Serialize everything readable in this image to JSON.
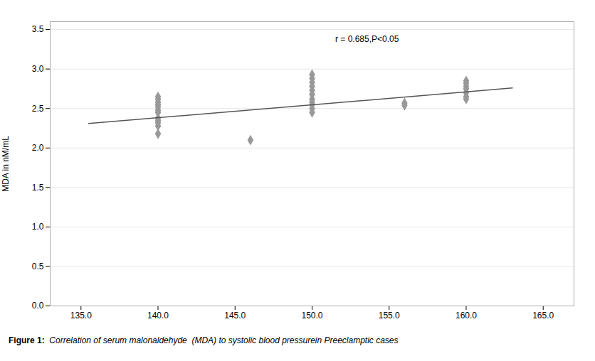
{
  "chart_data": {
    "type": "scatter",
    "ylabel": "MDA in nM/mL",
    "caption": [
      "Figure 1:",
      "  Correlation of serum malonaldehyde  (MDA) to systolic blood pressurein Preeclamptic cases"
    ],
    "xlim": [
      133.0,
      167.0
    ],
    "ylim": [
      0.0,
      3.6
    ],
    "xticks": [
      {
        "value": 135,
        "label": "135.0"
      },
      {
        "value": 140,
        "label": "140.0"
      },
      {
        "value": 145,
        "label": "145.0"
      },
      {
        "value": 150,
        "label": "150.0"
      },
      {
        "value": 155,
        "label": "155.0"
      },
      {
        "value": 160,
        "label": "160.0"
      },
      {
        "value": 165,
        "label": "165.0"
      }
    ],
    "yticks": [
      {
        "value": 0,
        "label": "0.0"
      },
      {
        "value": 0.5,
        "label": "0.5"
      },
      {
        "value": 1,
        "label": "1.0"
      },
      {
        "value": 1.5,
        "label": "1.5"
      },
      {
        "value": 2,
        "label": "2.0"
      },
      {
        "value": 2.5,
        "label": "2.5"
      },
      {
        "value": 3,
        "label": "3.0"
      },
      {
        "value": 3.5,
        "label": "3.5"
      }
    ],
    "grid": "y",
    "series": [
      {
        "type": "scatter",
        "color": "#999999",
        "marker": "diamond",
        "x": [
          140,
          140,
          140,
          140,
          140,
          140,
          140,
          140,
          140,
          140,
          140,
          140,
          146,
          150,
          150,
          150,
          150,
          150,
          150,
          150,
          150,
          150,
          150,
          150,
          156,
          156,
          160,
          160,
          160,
          160,
          160,
          160,
          160
        ],
        "values": [
          2.65,
          2.62,
          2.58,
          2.55,
          2.52,
          2.48,
          2.45,
          2.38,
          2.35,
          2.32,
          2.28,
          2.18,
          2.1,
          2.93,
          2.88,
          2.83,
          2.78,
          2.73,
          2.68,
          2.62,
          2.58,
          2.55,
          2.5,
          2.45,
          2.57,
          2.54,
          2.85,
          2.82,
          2.78,
          2.75,
          2.7,
          2.65,
          2.62
        ]
      },
      {
        "type": "line",
        "color": "#555555",
        "line_style": "solid",
        "x": [
          135.5,
          163.0
        ],
        "values": [
          2.31,
          2.76
        ]
      }
    ],
    "annotations": [
      {
        "text": "r = 0.685,P<0.05",
        "x": 151.5,
        "y": 3.42
      }
    ]
  }
}
